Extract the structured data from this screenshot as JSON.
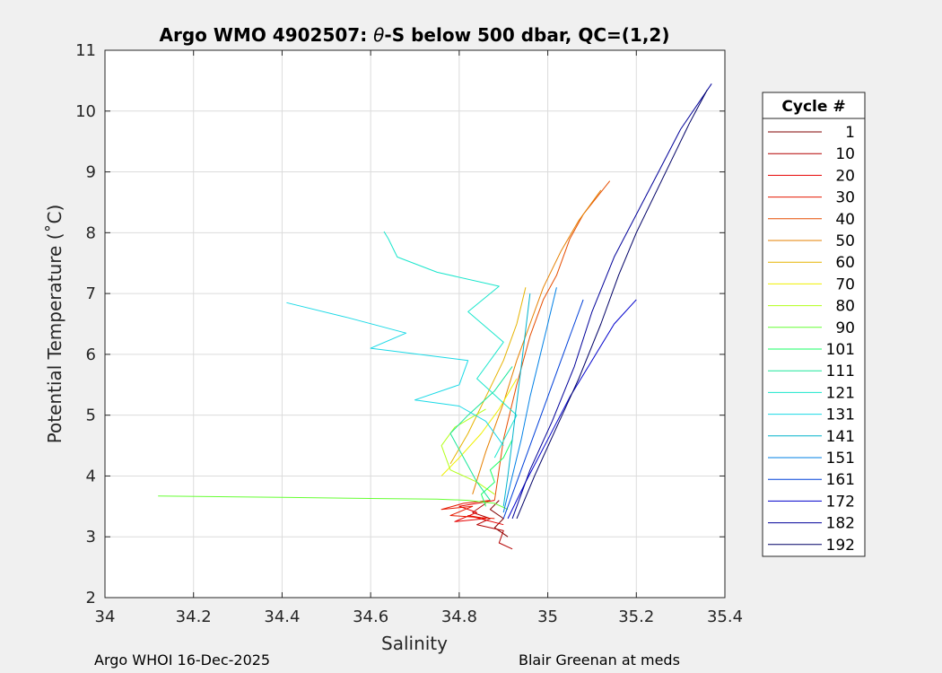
{
  "chart_data": {
    "type": "line",
    "title_prefix": "Argo WMO 4902507: ",
    "title_symbol": "θ",
    "title_suffix": "-S below 500 dbar,  QC=(1,2)",
    "xlabel": "Salinity",
    "ylabel": "Potential Temperature (˚C)",
    "xlim": [
      34,
      35.4
    ],
    "ylim": [
      2,
      11
    ],
    "xticks": [
      "34",
      "34.2",
      "34.4",
      "34.6",
      "34.8",
      "35",
      "35.2",
      "35.4"
    ],
    "yticks": [
      "2",
      "3",
      "4",
      "5",
      "6",
      "7",
      "8",
      "9",
      "10",
      "11"
    ],
    "grid": true,
    "legend_title": "Cycle #",
    "legend_position": "outside-right",
    "series": [
      {
        "name": "1",
        "color": "#800000",
        "x": [
          34.89,
          34.87,
          34.9,
          34.88,
          34.91
        ],
        "y": [
          3.6,
          3.45,
          3.3,
          3.15,
          3.0
        ]
      },
      {
        "name": "10",
        "color": "#b30000",
        "x": [
          34.86,
          34.83,
          34.87,
          34.84,
          34.9,
          34.89,
          34.92
        ],
        "y": [
          3.55,
          3.4,
          3.3,
          3.2,
          3.1,
          2.9,
          2.8
        ]
      },
      {
        "name": "20",
        "color": "#e60000",
        "x": [
          34.88,
          34.8,
          34.84,
          34.79,
          34.86,
          34.82,
          34.9
        ],
        "y": [
          3.6,
          3.5,
          3.4,
          3.25,
          3.3,
          3.35,
          3.2
        ]
      },
      {
        "name": "30",
        "color": "#e61a00",
        "x": [
          34.87,
          34.81,
          34.76,
          34.83,
          34.78,
          34.88
        ],
        "y": [
          3.6,
          3.55,
          3.45,
          3.5,
          3.35,
          3.3
        ]
      },
      {
        "name": "40",
        "color": "#e64d00",
        "x": [
          34.88,
          34.9,
          34.93,
          34.96,
          34.99,
          35.02,
          35.05,
          35.08,
          35.14
        ],
        "y": [
          3.6,
          4.6,
          5.5,
          6.3,
          6.9,
          7.3,
          7.9,
          8.3,
          8.85
        ]
      },
      {
        "name": "50",
        "color": "#e68000",
        "x": [
          34.83,
          34.86,
          34.9,
          34.93,
          34.96,
          34.99,
          35.03,
          35.07,
          35.12
        ],
        "y": [
          3.7,
          4.4,
          5.2,
          5.9,
          6.5,
          7.1,
          7.7,
          8.2,
          8.7
        ]
      },
      {
        "name": "60",
        "color": "#e6b300",
        "x": [
          34.78,
          34.82,
          34.86,
          34.9,
          34.93,
          34.95
        ],
        "y": [
          4.2,
          4.7,
          5.3,
          5.9,
          6.5,
          7.1
        ]
      },
      {
        "name": "70",
        "color": "#f0f000",
        "x": [
          34.76,
          34.8,
          34.85,
          34.89,
          34.93
        ],
        "y": [
          4.0,
          4.3,
          4.7,
          5.1,
          5.6
        ]
      },
      {
        "name": "80",
        "color": "#b3ff1a",
        "x": [
          34.88,
          34.84,
          34.78,
          34.76,
          34.79,
          34.86
        ],
        "y": [
          3.7,
          3.9,
          4.1,
          4.5,
          4.8,
          5.1
        ]
      },
      {
        "name": "90",
        "color": "#66ff33",
        "x": [
          34.12,
          34.4,
          34.6,
          34.75,
          34.82,
          34.88,
          34.91
        ],
        "y": [
          3.67,
          3.65,
          3.63,
          3.62,
          3.6,
          3.55,
          3.45
        ]
      },
      {
        "name": "101",
        "color": "#1aff66",
        "x": [
          34.86,
          34.85,
          34.88,
          34.87,
          34.9,
          34.92
        ],
        "y": [
          3.5,
          3.7,
          3.9,
          4.1,
          4.3,
          4.6
        ]
      },
      {
        "name": "111",
        "color": "#1ae699",
        "x": [
          34.87,
          34.84,
          34.81,
          34.78,
          34.82,
          34.88,
          34.92
        ],
        "y": [
          3.6,
          3.9,
          4.3,
          4.7,
          5.0,
          5.4,
          5.8
        ]
      },
      {
        "name": "121",
        "color": "#1ae6cc",
        "x": [
          34.63,
          34.64,
          34.66,
          34.75,
          34.89,
          34.82,
          34.9,
          34.84,
          34.93,
          34.88
        ],
        "y": [
          8.02,
          7.9,
          7.6,
          7.35,
          7.12,
          6.7,
          6.2,
          5.6,
          5.0,
          4.3
        ]
      },
      {
        "name": "131",
        "color": "#1ad9e6",
        "x": [
          34.41,
          34.55,
          34.68,
          34.6,
          34.82,
          34.8,
          34.7,
          34.8,
          34.86,
          34.9
        ],
        "y": [
          6.85,
          6.6,
          6.35,
          6.1,
          5.9,
          5.5,
          5.25,
          5.15,
          4.9,
          4.5
        ]
      },
      {
        "name": "141",
        "color": "#00b3cc",
        "x": [
          34.9,
          34.91,
          34.92,
          34.93,
          34.94,
          34.95,
          34.96
        ],
        "y": [
          3.5,
          4.0,
          4.6,
          5.2,
          5.8,
          6.4,
          7.0
        ]
      },
      {
        "name": "151",
        "color": "#0080e6",
        "x": [
          34.9,
          34.92,
          34.94,
          34.96,
          34.98,
          35.0,
          35.02
        ],
        "y": [
          3.4,
          4.0,
          4.6,
          5.3,
          5.9,
          6.5,
          7.1
        ]
      },
      {
        "name": "161",
        "color": "#0040d9",
        "x": [
          34.9,
          34.93,
          34.96,
          34.99,
          35.02,
          35.05,
          35.08
        ],
        "y": [
          3.3,
          3.9,
          4.5,
          5.1,
          5.7,
          6.3,
          6.9
        ]
      },
      {
        "name": "172",
        "color": "#0000cc",
        "x": [
          34.91,
          34.95,
          35.0,
          35.05,
          35.1,
          35.15,
          35.2
        ],
        "y": [
          3.3,
          3.9,
          4.6,
          5.3,
          5.9,
          6.5,
          6.9
        ]
      },
      {
        "name": "182",
        "color": "#000099",
        "x": [
          34.92,
          34.96,
          35.01,
          35.06,
          35.1,
          35.15,
          35.2,
          35.25,
          35.3,
          35.37
        ],
        "y": [
          3.3,
          4.1,
          4.9,
          5.8,
          6.7,
          7.6,
          8.3,
          9.0,
          9.7,
          10.45
        ]
      },
      {
        "name": "192",
        "color": "#000066",
        "x": [
          34.93,
          34.97,
          35.02,
          35.07,
          35.12,
          35.16,
          35.2,
          35.26,
          35.32,
          35.36
        ],
        "y": [
          3.3,
          4.0,
          4.8,
          5.6,
          6.5,
          7.3,
          8.0,
          8.9,
          9.8,
          10.35
        ]
      }
    ]
  },
  "footer": {
    "left": "Argo WHOI 16-Dec-2025",
    "right": "Blair Greenan at meds"
  }
}
